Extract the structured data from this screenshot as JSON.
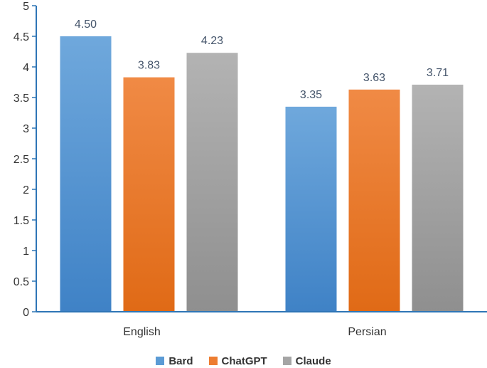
{
  "chart_data": {
    "type": "bar",
    "categories": [
      "English",
      "Persian"
    ],
    "series": [
      {
        "name": "Bard",
        "values": [
          4.5,
          3.35
        ],
        "labels": [
          "4.50",
          "3.35"
        ],
        "color": "#5b9bd5"
      },
      {
        "name": "ChatGPT",
        "values": [
          3.83,
          3.63
        ],
        "labels": [
          "3.83",
          "3.63"
        ],
        "color": "#ed7d31"
      },
      {
        "name": "Claude",
        "values": [
          4.23,
          3.71
        ],
        "labels": [
          "4.23",
          "3.71"
        ],
        "color": "#a5a5a5"
      }
    ],
    "yticks": [
      "0",
      "0.5",
      "1",
      "1.5",
      "2",
      "2.5",
      "3",
      "3.5",
      "4",
      "4.5",
      "5"
    ],
    "ylim": [
      0,
      5
    ],
    "grid": false,
    "legend_position": "bottom",
    "title": "",
    "xlabel": "",
    "ylabel": ""
  }
}
